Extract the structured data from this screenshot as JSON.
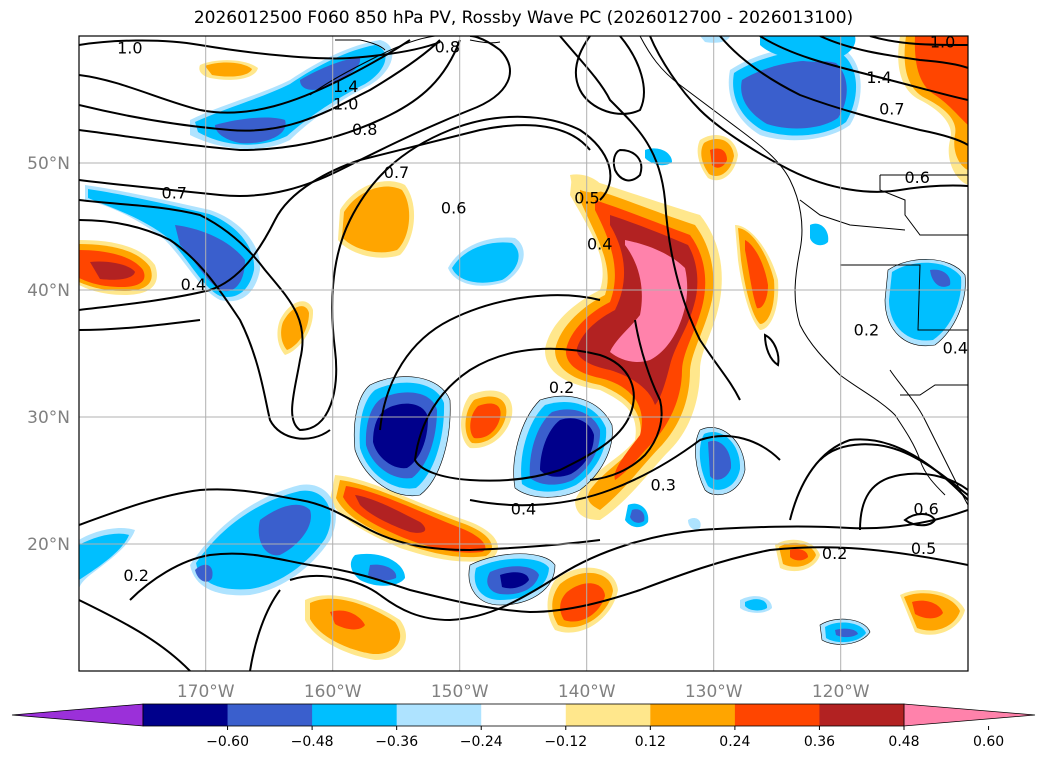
{
  "title": "2026012500 F060 850 hPa PV, Rossby Wave PC (2026012700 - 2026013100)",
  "map": {
    "lon_min": -180,
    "lon_max": -110,
    "lat_min": 10,
    "lat_max": 60,
    "lat_ticks": [
      "20°N",
      "30°N",
      "40°N",
      "50°N"
    ],
    "lon_ticks": [
      "170°W",
      "160°W",
      "150°W",
      "140°W",
      "130°W",
      "120°W"
    ],
    "contour_labels": [
      {
        "text": "1.0",
        "lon": -176,
        "lat": 59
      },
      {
        "text": "1.4",
        "lon": -159,
        "lat": 56
      },
      {
        "text": "1.0",
        "lon": -159,
        "lat": 54.6
      },
      {
        "text": "0.8",
        "lon": -151,
        "lat": 59.1
      },
      {
        "text": "0.8",
        "lon": -157.5,
        "lat": 52.6
      },
      {
        "text": "0.7",
        "lon": -155,
        "lat": 49.2
      },
      {
        "text": "0.7",
        "lon": -172.5,
        "lat": 47.6
      },
      {
        "text": "0.6",
        "lon": -150.5,
        "lat": 46.4
      },
      {
        "text": "0.4",
        "lon": -171,
        "lat": 40.4
      },
      {
        "text": "0.5",
        "lon": -140,
        "lat": 47.2
      },
      {
        "text": "0.4",
        "lon": -139,
        "lat": 43.6
      },
      {
        "text": "0.2",
        "lon": -142,
        "lat": 32.3
      },
      {
        "text": "0.4",
        "lon": -145,
        "lat": 22.7
      },
      {
        "text": "0.3",
        "lon": -134,
        "lat": 24.6
      },
      {
        "text": "0.2",
        "lon": -175.5,
        "lat": 17.5
      },
      {
        "text": "1.4",
        "lon": -117,
        "lat": 56.7
      },
      {
        "text": "0.7",
        "lon": -116,
        "lat": 54.2
      },
      {
        "text": "0.6",
        "lon": -114,
        "lat": 48.8
      },
      {
        "text": "0.2",
        "lon": -118,
        "lat": 36.8
      },
      {
        "text": "0.4",
        "lon": -111,
        "lat": 35.4
      },
      {
        "text": "0.6",
        "lon": -113.3,
        "lat": 22.7
      },
      {
        "text": "0.5",
        "lon": -113.5,
        "lat": 19.6
      },
      {
        "text": "0.2",
        "lon": -120.5,
        "lat": 19.2
      },
      {
        "text": "1.0",
        "lon": -112,
        "lat": 59.5
      }
    ]
  },
  "colorbar": {
    "colors": [
      "#9b30d9",
      "#00008b",
      "#3a5fcd",
      "#00bfff",
      "#aee3ff",
      "#ffffff",
      "#ffe78c",
      "#ffa500",
      "#ff4500",
      "#b22222",
      "#ff82ab"
    ],
    "tick_labels": [
      "−0.60",
      "−0.48",
      "−0.36",
      "−0.24",
      "−0.12",
      "0.12",
      "0.24",
      "0.36",
      "0.48",
      "0.60"
    ]
  }
}
